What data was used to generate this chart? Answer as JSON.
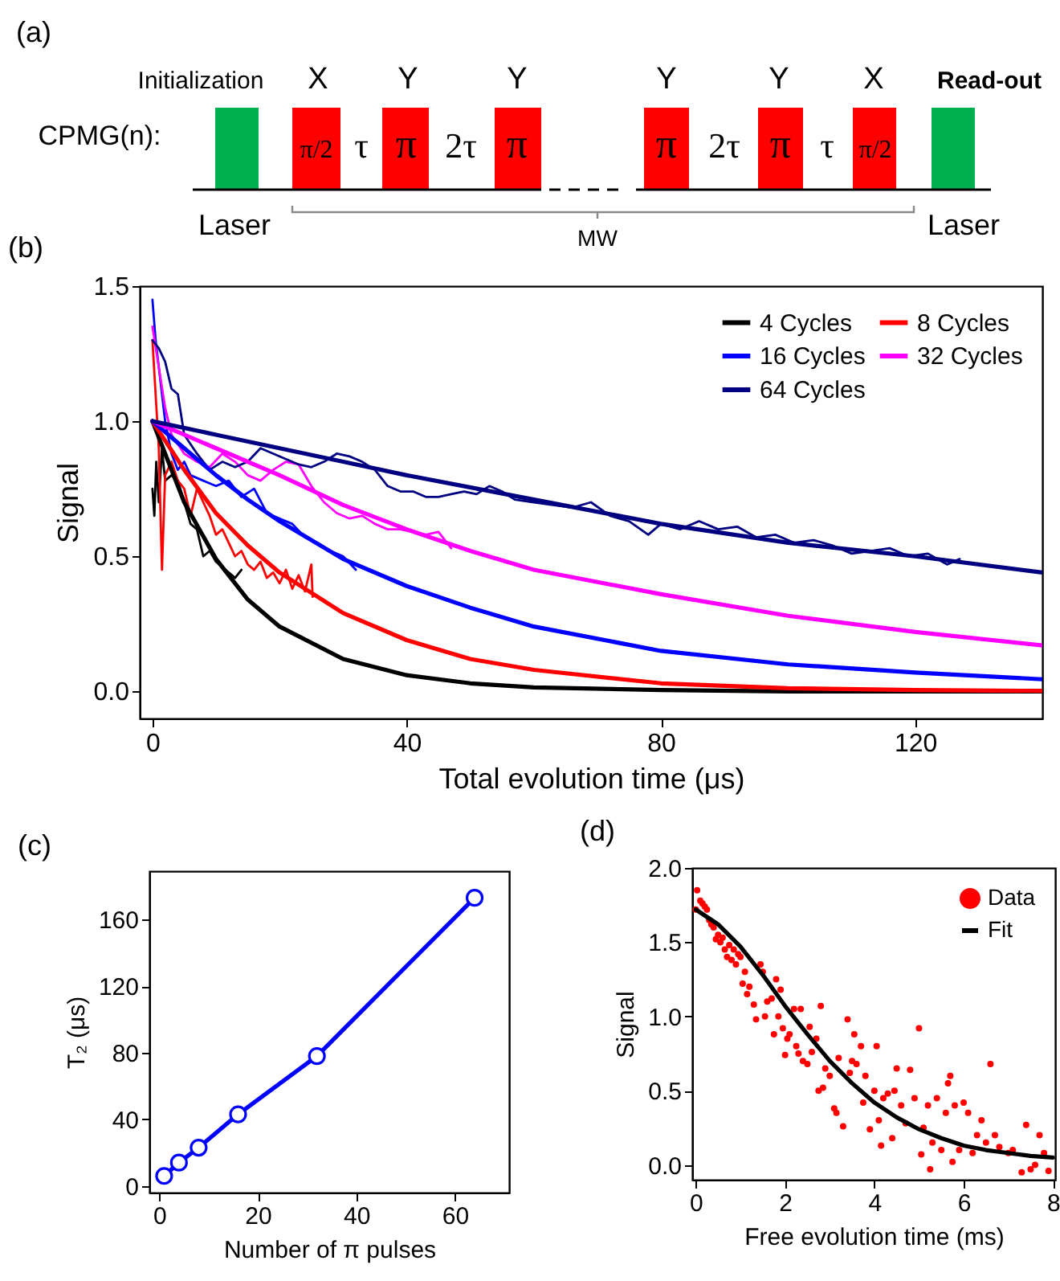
{
  "chart_data": [
    {
      "type": "other",
      "title": "(a)",
      "annotations": [
        "Initialization",
        "X",
        "Y",
        "Y",
        "Y",
        "Y",
        "X",
        "Read-out",
        "CPMG(n):",
        "π/2",
        "τ",
        "π",
        "2τ",
        "π",
        "π",
        "2τ",
        "π",
        "τ",
        "π/2",
        "Laser",
        "MW",
        "Laser"
      ]
    },
    {
      "type": "line",
      "title": "(b)",
      "xlabel": "Total evolution time (μs)",
      "ylabel": "Signal",
      "xlim": [
        -2,
        140
      ],
      "ylim": [
        -0.1,
        1.5
      ],
      "xticks": [
        0,
        40,
        80,
        120
      ],
      "yticks": [
        {
          "value": 0,
          "label": "0.0"
        },
        {
          "value": 0.5,
          "label": "0.5"
        },
        {
          "value": 1,
          "label": "1.0"
        },
        {
          "value": 1.5,
          "label": "1.5"
        }
      ],
      "legend": "top right",
      "series": [
        {
          "color": "#000000",
          "x": [
            0,
            0.3,
            0.6,
            1,
            1.5,
            2,
            3,
            4,
            5,
            6,
            7,
            8,
            9,
            10,
            11,
            12,
            13,
            14
          ],
          "values": [
            0.75,
            0.65,
            0.85,
            0.7,
            0.9,
            0.78,
            0.8,
            0.78,
            0.7,
            0.62,
            0.6,
            0.5,
            0.52,
            0.48,
            0.46,
            0.44,
            0.42,
            0.45
          ]
        },
        {
          "color": "#ff0000",
          "x": [
            0,
            0.5,
            1,
            1.5,
            2,
            3,
            4,
            5,
            6,
            7,
            8,
            9,
            10,
            11,
            12,
            13,
            14,
            15,
            16,
            17,
            18,
            19,
            20,
            21,
            22,
            23,
            24,
            25,
            25.2
          ],
          "values": [
            1.3,
            1.1,
            0.9,
            0.45,
            0.8,
            0.85,
            0.78,
            0.75,
            0.65,
            0.75,
            0.7,
            0.65,
            0.58,
            0.6,
            0.55,
            0.5,
            0.52,
            0.47,
            0.45,
            0.48,
            0.42,
            0.44,
            0.4,
            0.45,
            0.38,
            0.43,
            0.37,
            0.47,
            0.35
          ]
        },
        {
          "color": "#0000ff",
          "x": [
            0,
            0.5,
            1,
            2,
            3,
            4,
            5,
            6,
            8,
            10,
            12,
            14,
            16,
            18,
            20,
            22,
            24,
            26,
            28,
            30,
            32
          ],
          "values": [
            1.45,
            1.3,
            1.2,
            1.0,
            0.88,
            0.82,
            0.85,
            0.8,
            0.78,
            0.76,
            0.78,
            0.72,
            0.75,
            0.66,
            0.64,
            0.62,
            0.57,
            0.55,
            0.52,
            0.5,
            0.45
          ]
        },
        {
          "color": "#ff00ff",
          "x": [
            0,
            1,
            2,
            3,
            5,
            7,
            9,
            11,
            13,
            15,
            17,
            19,
            21,
            23,
            25,
            27,
            29,
            31,
            33,
            35,
            37,
            39,
            41,
            43,
            45,
            47
          ],
          "values": [
            1.35,
            1.2,
            1.05,
            0.95,
            0.88,
            0.85,
            0.83,
            0.88,
            0.85,
            0.8,
            0.78,
            0.82,
            0.85,
            0.84,
            0.76,
            0.7,
            0.66,
            0.64,
            0.65,
            0.62,
            0.6,
            0.6,
            0.59,
            0.58,
            0.59,
            0.53
          ]
        },
        {
          "color": "#000080",
          "x": [
            0,
            1,
            2,
            3,
            4,
            5,
            7,
            9,
            11,
            13,
            15,
            17,
            19,
            21,
            23,
            25,
            27,
            29,
            31,
            33,
            35,
            37,
            39,
            41,
            43,
            45,
            47,
            49,
            51,
            53,
            55,
            57,
            60,
            63,
            66,
            69,
            72,
            75,
            78,
            80,
            83,
            86,
            89,
            92,
            95,
            98,
            101,
            104,
            107,
            110,
            113,
            116,
            119,
            122,
            125,
            127
          ],
          "values": [
            1.3,
            1.27,
            1.22,
            1.12,
            1.1,
            0.95,
            0.88,
            0.82,
            0.85,
            0.83,
            0.85,
            0.9,
            0.88,
            0.86,
            0.84,
            0.83,
            0.85,
            0.88,
            0.87,
            0.85,
            0.82,
            0.76,
            0.74,
            0.74,
            0.72,
            0.72,
            0.73,
            0.74,
            0.73,
            0.76,
            0.74,
            0.71,
            0.7,
            0.69,
            0.68,
            0.7,
            0.65,
            0.63,
            0.58,
            0.62,
            0.6,
            0.63,
            0.6,
            0.61,
            0.57,
            0.58,
            0.55,
            0.56,
            0.54,
            0.51,
            0.52,
            0.53,
            0.5,
            0.51,
            0.47,
            0.49
          ]
        },
        {
          "name": "4 Cycles",
          "color": "#000000",
          "x": [
            0,
            5,
            10,
            15,
            20,
            30,
            40,
            50,
            60,
            80,
            100,
            120,
            140
          ],
          "values": [
            1.0,
            0.7,
            0.49,
            0.34,
            0.24,
            0.12,
            0.06,
            0.03,
            0.015,
            0.005,
            0.0,
            0.0,
            0.0
          ]
        },
        {
          "name": "8 Cycles",
          "color": "#ff0000",
          "x": [
            0,
            5,
            10,
            15,
            20,
            30,
            40,
            50,
            60,
            80,
            100,
            120,
            140
          ],
          "values": [
            1.0,
            0.82,
            0.66,
            0.54,
            0.44,
            0.29,
            0.19,
            0.12,
            0.08,
            0.03,
            0.012,
            0.005,
            0.002
          ]
        },
        {
          "name": "16 Cycles",
          "color": "#0000ff",
          "x": [
            0,
            5,
            10,
            15,
            20,
            30,
            40,
            50,
            60,
            80,
            100,
            120,
            140
          ],
          "values": [
            1.0,
            0.9,
            0.8,
            0.71,
            0.63,
            0.49,
            0.39,
            0.31,
            0.24,
            0.15,
            0.1,
            0.07,
            0.045
          ]
        },
        {
          "name": "32 Cycles",
          "color": "#ff00ff",
          "x": [
            0,
            5,
            10,
            20,
            30,
            40,
            50,
            60,
            80,
            100,
            120,
            140
          ],
          "values": [
            1.0,
            0.95,
            0.9,
            0.8,
            0.69,
            0.6,
            0.52,
            0.45,
            0.36,
            0.28,
            0.22,
            0.17
          ]
        },
        {
          "name": "64 Cycles",
          "color": "#000080",
          "x": [
            0,
            10,
            20,
            30,
            40,
            60,
            80,
            100,
            120,
            140
          ],
          "values": [
            1.0,
            0.95,
            0.9,
            0.85,
            0.8,
            0.71,
            0.62,
            0.55,
            0.5,
            0.44
          ]
        }
      ]
    },
    {
      "type": "line",
      "title": "(c)",
      "xlabel": "Number of π pulses",
      "ylabel": "T₂ (μs)",
      "xlim": [
        -2,
        71
      ],
      "ylim": [
        -4,
        189
      ],
      "xticks": [
        0,
        20,
        40,
        60
      ],
      "yticks": [
        0,
        40,
        80,
        120,
        160
      ],
      "marker": "circle",
      "series": [
        {
          "color": "#0000ff",
          "x": [
            1,
            4,
            8,
            16,
            32,
            64
          ],
          "values": [
            6,
            14,
            23,
            43,
            78,
            173
          ]
        }
      ]
    },
    {
      "type": "scatter",
      "title": "(d)",
      "xlabel": "Free evolution time (ms)",
      "ylabel": "Signal",
      "xlim": [
        -0.08,
        8.05
      ],
      "ylim": [
        -0.1,
        2.0
      ],
      "xticks": [
        0,
        2,
        4,
        6,
        8
      ],
      "yticks": [
        {
          "value": 0,
          "label": "0.0"
        },
        {
          "value": 0.5,
          "label": "0.5"
        },
        {
          "value": 1,
          "label": "1.0"
        },
        {
          "value": 1.5,
          "label": "1.5"
        },
        {
          "value": 2,
          "label": "2.0"
        }
      ],
      "legend": "top right",
      "series": [
        {
          "name": "Data",
          "color": "#ff0000",
          "x": [
            0,
            0.03,
            0.1,
            0.15,
            0.2,
            0.25,
            0.3,
            0.35,
            0.4,
            0.45,
            0.5,
            0.55,
            0.6,
            0.65,
            0.7,
            0.75,
            0.8,
            0.85,
            0.9,
            0.95,
            1.0,
            1.05,
            1.1,
            1.15,
            1.2,
            1.3,
            1.35,
            1.45,
            1.5,
            1.55,
            1.6,
            1.7,
            1.75,
            1.8,
            1.85,
            1.9,
            1.95,
            2.0,
            2.05,
            2.1,
            2.2,
            2.25,
            2.3,
            2.35,
            2.4,
            2.5,
            2.55,
            2.6,
            2.7,
            2.75,
            2.8,
            2.85,
            2.9,
            3.0,
            3.1,
            3.15,
            3.2,
            3.3,
            3.4,
            3.45,
            3.5,
            3.55,
            3.6,
            3.7,
            3.75,
            3.8,
            3.9,
            4.0,
            4.05,
            4.1,
            4.15,
            4.2,
            4.3,
            4.4,
            4.45,
            4.5,
            4.6,
            4.7,
            4.8,
            4.9,
            5.0,
            5.05,
            5.1,
            5.2,
            5.25,
            5.3,
            5.4,
            5.5,
            5.6,
            5.65,
            5.7,
            5.75,
            5.8,
            5.9,
            6.0,
            6.1,
            6.2,
            6.3,
            6.4,
            6.5,
            6.6,
            6.7,
            6.8,
            7.0,
            7.1,
            7.3,
            7.4,
            7.5,
            7.6,
            7.7,
            7.8,
            7.9
          ],
          "values": [
            1.72,
            1.85,
            1.78,
            1.76,
            1.74,
            1.72,
            1.65,
            1.62,
            1.6,
            1.52,
            1.55,
            1.5,
            1.53,
            1.45,
            1.4,
            1.48,
            1.38,
            1.45,
            1.35,
            1.42,
            1.4,
            1.22,
            1.3,
            1.15,
            1.2,
            1.08,
            0.98,
            1.35,
            1.3,
            1.0,
            1.1,
            1.12,
            0.88,
            1.25,
            1.0,
            1.18,
            0.92,
            0.74,
            0.85,
            0.88,
            1.05,
            0.8,
            0.75,
            1.05,
            0.7,
            0.68,
            0.93,
            0.76,
            0.85,
            0.5,
            1.07,
            0.52,
            0.65,
            0.6,
            0.38,
            0.35,
            0.72,
            0.26,
            0.98,
            0.62,
            0.7,
            0.88,
            0.68,
            0.8,
            0.42,
            0.6,
            0.24,
            0.5,
            0.8,
            0.3,
            0.13,
            0.45,
            0.48,
            0.18,
            0.5,
            0.65,
            0.4,
            0.28,
            0.64,
            0.45,
            0.92,
            0.07,
            0.25,
            0.4,
            -0.03,
            0.15,
            0.45,
            0.1,
            0.35,
            0.55,
            0.6,
            0.02,
            0.4,
            0.1,
            0.42,
            0.35,
            0.08,
            0.2,
            0.3,
            0.15,
            0.68,
            0.2,
            0.12,
            0.08,
            0.1,
            -0.05,
            0.27,
            -0.03,
            0.0,
            0.2,
            0.08,
            -0.04
          ]
        },
        {
          "name": "Fit",
          "type": "line",
          "color": "#000000",
          "x": [
            0,
            0.5,
            1,
            1.5,
            2,
            2.5,
            3,
            3.5,
            4,
            4.5,
            5,
            5.5,
            6,
            6.5,
            7,
            7.5,
            8
          ],
          "values": [
            1.72,
            1.62,
            1.47,
            1.28,
            1.07,
            0.88,
            0.7,
            0.55,
            0.42,
            0.32,
            0.24,
            0.18,
            0.13,
            0.1,
            0.08,
            0.06,
            0.05
          ]
        }
      ]
    }
  ]
}
